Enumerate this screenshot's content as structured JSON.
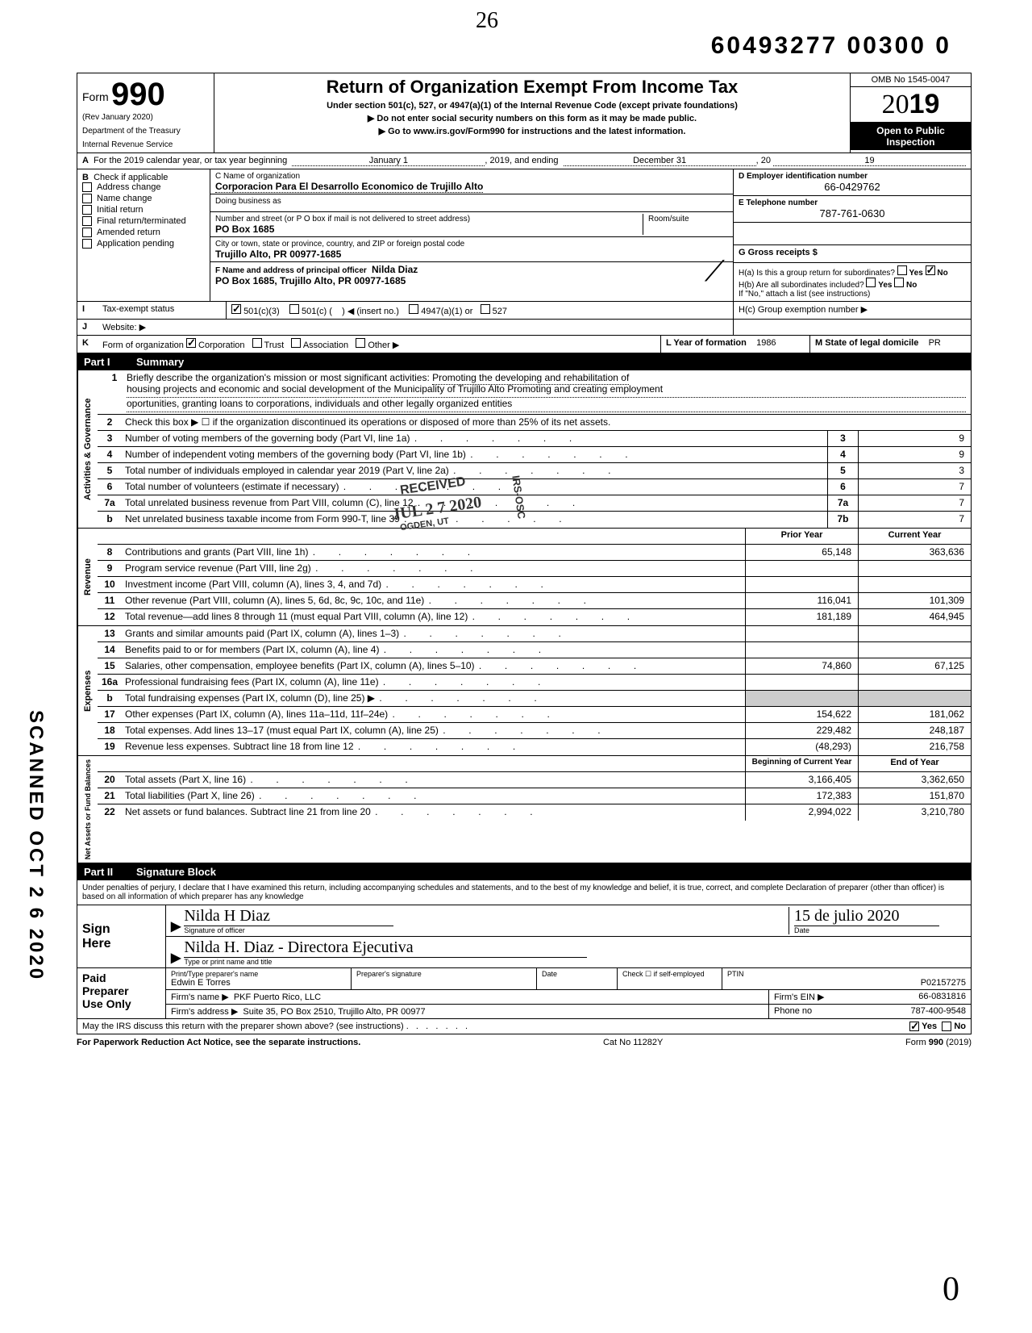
{
  "top_handwritten": "26",
  "top_number": "60493277 00300   0",
  "omb": "OMB No 1545-0047",
  "form_no_prefix": "Form",
  "form_no": "990",
  "rev": "(Rev  January 2020)",
  "dept1": "Department of the Treasury",
  "dept2": "Internal Revenue Service",
  "title": "Return of Organization Exempt From Income Tax",
  "subtitle": "Under section 501(c), 527, or 4947(a)(1) of the Internal Revenue Code (except private foundations)",
  "note1": "▶ Do not enter social security numbers on this form as it may be made public.",
  "note2": "▶ Go to www.irs.gov/Form990 for instructions and the latest information.",
  "year20": "20",
  "year_suffix": "19",
  "open_public": "Open to Public Inspection",
  "line_a": {
    "label": "A",
    "text": "For the 2019 calendar year, or tax year beginning",
    "begin": "January 1",
    "mid": ", 2019, and ending",
    "end": "December 31",
    "yr_label": ", 20",
    "yr": "19"
  },
  "section_b": {
    "b_label": "B",
    "b_text": "Check if applicable",
    "checks": {
      "address_change": "Address change",
      "name_change": "Name change",
      "initial_return": "Initial return",
      "final_return": "Final return/terminated",
      "amended_return": "Amended return",
      "application_pending": "Application pending"
    },
    "c_label": "C Name of organization",
    "c_value": "Corporacion Para El Desarrollo Economico de Trujillo Alto",
    "dba_label": "Doing business as",
    "dba_value": "",
    "addr_label": "Number and street (or P O  box if mail is not delivered to street address)",
    "addr_value": "PO Box 1685",
    "room_label": "Room/suite",
    "city_label": "City or town, state or province, country, and ZIP or foreign postal code",
    "city_value": "Trujillo Alto, PR  00977-1685",
    "f_label": "F Name and address of principal officer",
    "f_name": "Nilda Diaz",
    "f_addr": "PO Box 1685, Trujillo Alto, PR  00977-1685",
    "d_label": "D Employer identification number",
    "d_value": "66-0429762",
    "e_label": "E Telephone number",
    "e_value": "787-761-0630",
    "g_label": "G Gross receipts $",
    "g_value": "",
    "ha_label": "H(a) Is this a group return for subordinates?",
    "hb_label": "H(b) Are all subordinates included?",
    "hb_note": "If \"No,\" attach a list  (see instructions)",
    "hc_label": "H(c) Group exemption number ▶",
    "yes": "Yes",
    "no": "No"
  },
  "line_i": {
    "label": "I",
    "text": "Tax-exempt status",
    "opt1": "501(c)(3)",
    "opt2": "501(c) (",
    "opt2b": ") ◀ (insert no.)",
    "opt3": "4947(a)(1) or",
    "opt4": "527"
  },
  "line_j": {
    "label": "J",
    "text": "Website: ▶"
  },
  "line_k": {
    "label": "K",
    "text": "Form of organization",
    "opt1": "Corporation",
    "opt2": "Trust",
    "opt3": "Association",
    "opt4": "Other ▶",
    "year_label": "L Year of formation",
    "year_val": "1986",
    "state_label": "M State of legal domicile",
    "state_val": "PR"
  },
  "part1_header": {
    "num": "Part I",
    "title": "Summary"
  },
  "mission": {
    "num": "1",
    "label": "Briefly describe the organization's mission or most significant activities:",
    "line1": "Promoting the developing and rehabilitation of",
    "line2": "housing projects and economic and social development of the Municipality of Trujillo Alto   Promoting and creating employment",
    "line3": "oportunities, granting loans to corporations, individuals and other legally organized entities"
  },
  "line2": {
    "num": "2",
    "text": "Check this box ▶ ☐ if the organization discontinued its operations or disposed of more than 25% of its net assets."
  },
  "summary": {
    "side_gov": "Activities & Governance",
    "side_rev": "Revenue",
    "side_exp": "Expenses",
    "side_net": "Net Assets or Fund Balances",
    "lines_top": [
      {
        "num": "3",
        "text": "Number of voting members of the governing body (Part VI, line 1a)",
        "box": "3",
        "val": "9"
      },
      {
        "num": "4",
        "text": "Number of independent voting members of the governing body (Part VI, line 1b)",
        "box": "4",
        "val": "9"
      },
      {
        "num": "5",
        "text": "Total number of individuals employed in calendar year 2019 (Part V, line 2a)",
        "box": "5",
        "val": "3"
      },
      {
        "num": "6",
        "text": "Total number of volunteers (estimate if necessary)",
        "box": "6",
        "val": "7"
      },
      {
        "num": "7a",
        "text": "Total unrelated business revenue from Part VIII, column (C), line 12",
        "box": "7a",
        "val": "7"
      },
      {
        "num": "b",
        "text": "Net unrelated business taxable income from Form 990-T, line 39",
        "box": "7b",
        "val": "7"
      }
    ],
    "col_prior": "Prior Year",
    "col_current": "Current Year",
    "lines_rev": [
      {
        "num": "8",
        "text": "Contributions and grants (Part VIII, line 1h)",
        "prior": "65,148",
        "curr": "363,636"
      },
      {
        "num": "9",
        "text": "Program service revenue (Part VIII, line 2g)",
        "prior": "",
        "curr": ""
      },
      {
        "num": "10",
        "text": "Investment income (Part VIII, column (A), lines 3, 4, and 7d)",
        "prior": "",
        "curr": ""
      },
      {
        "num": "11",
        "text": "Other revenue (Part VIII, column (A), lines 5, 6d, 8c, 9c, 10c, and 11e)",
        "prior": "116,041",
        "curr": "101,309"
      },
      {
        "num": "12",
        "text": "Total revenue—add lines 8 through 11 (must equal Part VIII, column (A), line 12)",
        "prior": "181,189",
        "curr": "464,945"
      }
    ],
    "lines_exp": [
      {
        "num": "13",
        "text": "Grants and similar amounts paid (Part IX, column (A), lines 1–3)",
        "prior": "",
        "curr": ""
      },
      {
        "num": "14",
        "text": "Benefits paid to or for members (Part IX, column (A), line 4)",
        "prior": "",
        "curr": ""
      },
      {
        "num": "15",
        "text": "Salaries, other compensation, employee benefits (Part IX, column (A), lines 5–10)",
        "prior": "74,860",
        "curr": "67,125"
      },
      {
        "num": "16a",
        "text": "Professional fundraising fees (Part IX, column (A),  line 11e)",
        "prior": "",
        "curr": ""
      },
      {
        "num": "b",
        "text": "Total fundraising expenses (Part IX, column (D), line 25) ▶",
        "prior": "shade",
        "curr": "shade"
      },
      {
        "num": "17",
        "text": "Other expenses (Part IX, column (A), lines 11a–11d, 11f–24e)",
        "prior": "154,622",
        "curr": "181,062"
      },
      {
        "num": "18",
        "text": "Total expenses. Add lines 13–17 (must equal Part IX, column (A), line 25)",
        "prior": "229,482",
        "curr": "248,187"
      },
      {
        "num": "19",
        "text": "Revenue less expenses. Subtract line 18 from line 12",
        "prior": "(48,293)",
        "curr": "216,758"
      }
    ],
    "col_begin": "Beginning of Current Year",
    "col_end": "End of Year",
    "lines_net": [
      {
        "num": "20",
        "text": "Total assets (Part X, line 16)",
        "prior": "3,166,405",
        "curr": "3,362,650"
      },
      {
        "num": "21",
        "text": "Total liabilities (Part X, line 26)",
        "prior": "172,383",
        "curr": "151,870"
      },
      {
        "num": "22",
        "text": "Net assets or fund balances. Subtract line 21 from line 20",
        "prior": "2,994,022",
        "curr": "3,210,780"
      }
    ]
  },
  "part2_header": {
    "num": "Part II",
    "title": "Signature Block"
  },
  "perjury": "Under penalties of perjury, I declare that I have examined this return, including accompanying schedules and statements, and to the best of my knowledge  and belief, it is true, correct, and complete  Declaration of preparer (other than officer) is based on all information of which preparer has any knowledge",
  "sign": {
    "label1": "Sign",
    "label2": "Here",
    "sig_officer": "Signature of officer",
    "officer_sig": "Nilda H Diaz",
    "date_label": "Date",
    "date_val": "15 de julio 2020",
    "typed_label": "Type or print name and title",
    "typed_val": "Nilda H. Diaz - Directora Ejecutiva"
  },
  "preparer": {
    "label1": "Paid",
    "label2": "Preparer",
    "label3": "Use Only",
    "print_label": "Print/Type preparer's name",
    "print_val": "Edwin E  Torres",
    "sig_label": "Preparer's signature",
    "date_label": "Date",
    "check_label": "Check ☐ if self-employed",
    "ptin_label": "PTIN",
    "ptin_val": "P02157275",
    "firm_label": "Firm's name     ▶",
    "firm_val": "PKF Puerto Rico, LLC",
    "ein_label": "Firm's EIN  ▶",
    "ein_val": "66-0831816",
    "addr_label": "Firm's address ▶",
    "addr_val": "Suite 35, PO Box 2510, Trujillo Alto, PR  00977",
    "phone_label": "Phone no",
    "phone_val": "787-400-9548"
  },
  "discuss": {
    "text": "May the IRS discuss this return with the preparer shown above? (see instructions)",
    "yes": "Yes",
    "no": "No"
  },
  "footer": {
    "left": "For Paperwork Reduction Act Notice, see the separate instructions.",
    "mid": "Cat  No  11282Y",
    "right": "Form 990 (2019)"
  },
  "side_scanned": "SCANNED  OCT  2 6  2020",
  "bottom_handwritten": "0",
  "stamps": {
    "received": "RECEIVED",
    "date": "JUL 2 7 2020",
    "irs": "IRS-OSC",
    "ogden": "OGDEN, UT"
  }
}
